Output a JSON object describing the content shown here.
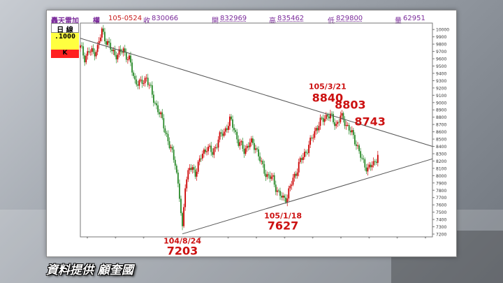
{
  "header": {
    "name": "轟天雷加",
    "type": "權",
    "date_code": "105-0524",
    "close_label": "收",
    "close": "830066",
    "open_label": "開",
    "open": "832969",
    "high_label": "高",
    "high": "835462",
    "low_label": "低",
    "low": "829800",
    "volume_label": "量",
    "volume": "62951"
  },
  "side_box": {
    "period": "日 線",
    "value": ".1000",
    "mode": "K"
  },
  "caption": "資料提供 顧奎國",
  "chart_data": {
    "type": "candlestick",
    "title": "",
    "xlabel": "",
    "ylabel": "",
    "ylim": [
      7200,
      10050
    ],
    "y_ticks": [
      7200,
      7300,
      7400,
      7500,
      7600,
      7700,
      7800,
      7900,
      8000,
      8100,
      8200,
      8300,
      8400,
      8500,
      8600,
      8700,
      8800,
      8900,
      9000,
      9100,
      9200,
      9300,
      9400,
      9500,
      9600,
      9700,
      9800,
      9900,
      10000
    ],
    "x_ticks": [
      "*",
      "*",
      "*",
      "*",
      "*",
      "*",
      "*",
      "*",
      "*",
      "*",
      "*",
      "*",
      "*"
    ],
    "approx_close_path": [
      [
        0,
        9750
      ],
      [
        3,
        9620
      ],
      [
        6,
        9700
      ],
      [
        9,
        9680
      ],
      [
        12,
        9750
      ],
      [
        15,
        9980
      ],
      [
        18,
        9850
      ],
      [
        22,
        9700
      ],
      [
        26,
        9650
      ],
      [
        30,
        9720
      ],
      [
        34,
        9580
      ],
      [
        38,
        9300
      ],
      [
        42,
        9250
      ],
      [
        46,
        9350
      ],
      [
        50,
        9100
      ],
      [
        54,
        8900
      ],
      [
        58,
        8700
      ],
      [
        62,
        8400
      ],
      [
        66,
        8200
      ],
      [
        69,
        7700
      ],
      [
        71,
        7250
      ],
      [
        73,
        7900
      ],
      [
        76,
        8100
      ],
      [
        80,
        8050
      ],
      [
        84,
        8250
      ],
      [
        88,
        8400
      ],
      [
        92,
        8300
      ],
      [
        96,
        8500
      ],
      [
        100,
        8600
      ],
      [
        104,
        8750
      ],
      [
        107,
        8650
      ],
      [
        110,
        8450
      ],
      [
        114,
        8350
      ],
      [
        118,
        8450
      ],
      [
        122,
        8400
      ],
      [
        126,
        8150
      ],
      [
        130,
        8000
      ],
      [
        134,
        7950
      ],
      [
        138,
        7750
      ],
      [
        141,
        7680
      ],
      [
        144,
        7720
      ],
      [
        148,
        7950
      ],
      [
        152,
        8150
      ],
      [
        156,
        8300
      ],
      [
        160,
        8450
      ],
      [
        164,
        8650
      ],
      [
        168,
        8750
      ],
      [
        172,
        8840
      ],
      [
        175,
        8780
      ],
      [
        178,
        8700
      ],
      [
        181,
        8803
      ],
      [
        184,
        8743
      ],
      [
        188,
        8600
      ],
      [
        192,
        8450
      ],
      [
        196,
        8200
      ],
      [
        200,
        8100
      ],
      [
        204,
        8150
      ],
      [
        207,
        8300
      ]
    ],
    "triangle": {
      "upper_line": {
        "from": [
          0,
          9880
        ],
        "to": [
          245,
          8400
        ]
      },
      "lower_line": {
        "from": [
          71,
          7203
        ],
        "to": [
          245,
          8230
        ]
      }
    },
    "annotations": [
      {
        "text": "104/8/24",
        "x": 71,
        "y": 7203,
        "role": "date"
      },
      {
        "text": "7203",
        "x": 71,
        "y": 7203,
        "role": "value"
      },
      {
        "text": "105/1/18",
        "x": 141,
        "y": 7627,
        "role": "date"
      },
      {
        "text": "7627",
        "x": 141,
        "y": 7627,
        "role": "value"
      },
      {
        "text": "105/3/21",
        "x": 172,
        "y": 8840,
        "role": "date"
      },
      {
        "text": "8840",
        "x": 172,
        "y": 8840,
        "role": "value"
      },
      {
        "text": "8803",
        "x": 181,
        "y": 8803,
        "role": "value"
      },
      {
        "text": "8743",
        "x": 187,
        "y": 8743,
        "role": "value"
      }
    ],
    "colors": {
      "up": "#cc0000",
      "down": "#2a8a2a",
      "line": "#555555",
      "annotation": "#cc1111"
    }
  }
}
